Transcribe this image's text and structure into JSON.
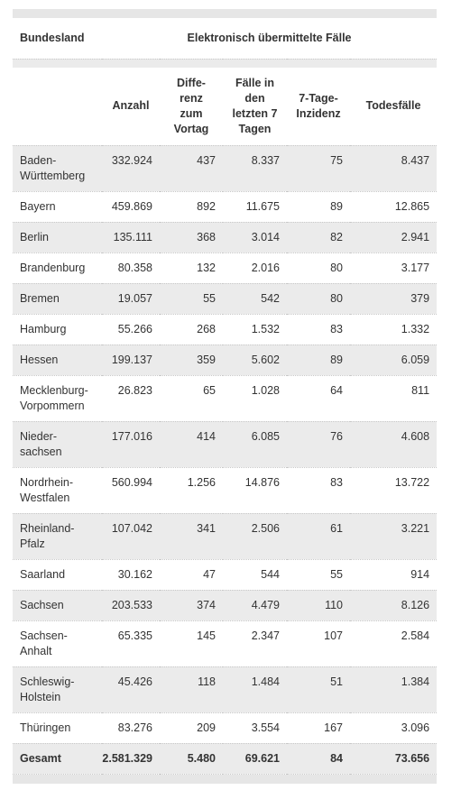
{
  "table": {
    "header": {
      "first": "Bundesland",
      "group": "Elektronisch übermittelte Fälle"
    },
    "columns": [
      "Anzahl",
      "Diffe-renz zum Vortag",
      "Fälle in den letzten 7 Tagen",
      "7-Tage-Inzidenz",
      "Todesfälle"
    ],
    "rows": [
      [
        "Baden-Württemberg",
        "332.924",
        "437",
        "8.337",
        "75",
        "8.437"
      ],
      [
        "Bayern",
        "459.869",
        "892",
        "11.675",
        "89",
        "12.865"
      ],
      [
        "Berlin",
        "135.111",
        "368",
        "3.014",
        "82",
        "2.941"
      ],
      [
        "Brandenburg",
        "80.358",
        "132",
        "2.016",
        "80",
        "3.177"
      ],
      [
        "Bremen",
        "19.057",
        "55",
        "542",
        "80",
        "379"
      ],
      [
        "Hamburg",
        "55.266",
        "268",
        "1.532",
        "83",
        "1.332"
      ],
      [
        "Hessen",
        "199.137",
        "359",
        "5.602",
        "89",
        "6.059"
      ],
      [
        "Mecklenburg-Vorpommern",
        "26.823",
        "65",
        "1.028",
        "64",
        "811"
      ],
      [
        "Nieder-sachsen",
        "177.016",
        "414",
        "6.085",
        "76",
        "4.608"
      ],
      [
        "Nordrhein-Westfalen",
        "560.994",
        "1.256",
        "14.876",
        "83",
        "13.722"
      ],
      [
        "Rheinland-Pfalz",
        "107.042",
        "341",
        "2.506",
        "61",
        "3.221"
      ],
      [
        "Saarland",
        "30.162",
        "47",
        "544",
        "55",
        "914"
      ],
      [
        "Sachsen",
        "203.533",
        "374",
        "4.479",
        "110",
        "8.126"
      ],
      [
        "Sachsen-Anhalt",
        "65.335",
        "145",
        "2.347",
        "107",
        "2.584"
      ],
      [
        "Schleswig-Holstein",
        "45.426",
        "118",
        "1.484",
        "51",
        "1.384"
      ],
      [
        "Thüringen",
        "83.276",
        "209",
        "3.554",
        "167",
        "3.096"
      ]
    ],
    "total": [
      "Gesamt",
      "2.581.329",
      "5.480",
      "69.621",
      "84",
      "73.656"
    ]
  }
}
